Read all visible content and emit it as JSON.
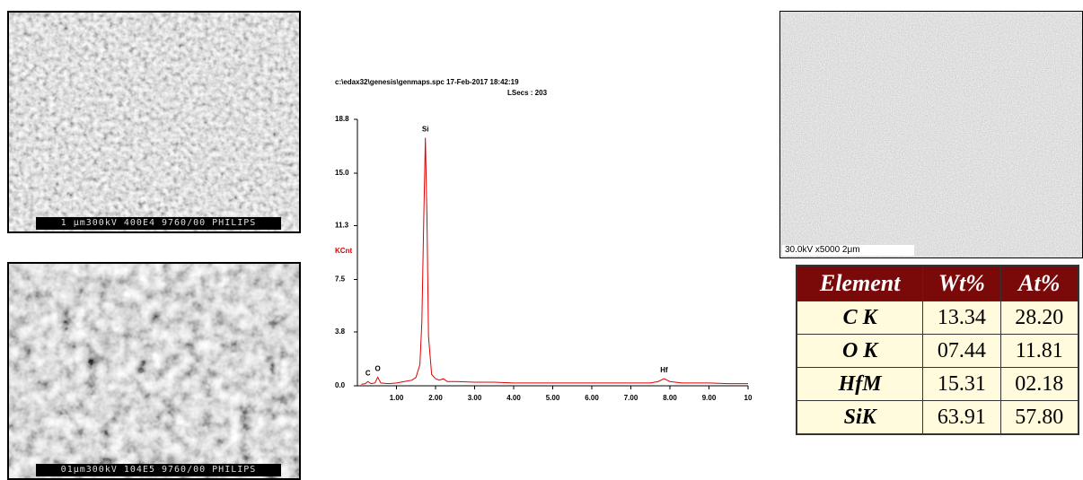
{
  "sem_images": [
    {
      "caption": "1 μm300kV 400E4 9760/00 PHILIPS"
    },
    {
      "caption": "01μm300kV 104E5 9760/00 PHILIPS"
    },
    {
      "caption": "30.0kV x5000 2μm"
    }
  ],
  "chart_data": {
    "type": "line",
    "header": "c:\\edax32\\genesis\\genmaps.spc  17-Feb-2017 18:42:19",
    "subheader": "LSecs : 203",
    "y_label": "KCnt",
    "color": "#e00000",
    "x": [
      0.1,
      0.2,
      0.27,
      0.35,
      0.45,
      0.52,
      0.6,
      0.8,
      1.0,
      1.2,
      1.4,
      1.5,
      1.6,
      1.65,
      1.7,
      1.74,
      1.78,
      1.82,
      1.9,
      2.0,
      2.1,
      2.2,
      2.3,
      2.5,
      3.0,
      3.5,
      4.0,
      4.5,
      5.0,
      5.5,
      6.0,
      6.5,
      7.0,
      7.5,
      7.7,
      7.85,
      8.0,
      8.3,
      9.0,
      9.5,
      10.0
    ],
    "values": [
      0.1,
      0.15,
      0.3,
      0.15,
      0.2,
      0.6,
      0.2,
      0.15,
      0.2,
      0.3,
      0.4,
      0.6,
      1.5,
      4.5,
      12.0,
      17.5,
      12.0,
      3.5,
      0.8,
      0.5,
      0.4,
      0.5,
      0.3,
      0.3,
      0.25,
      0.25,
      0.2,
      0.2,
      0.2,
      0.2,
      0.2,
      0.2,
      0.2,
      0.2,
      0.3,
      0.5,
      0.3,
      0.2,
      0.2,
      0.15,
      0.15
    ],
    "xlim": [
      0,
      10
    ],
    "ylim": [
      0,
      18.8
    ],
    "xticks": [
      {
        "value": 1,
        "label": "1.00"
      },
      {
        "value": 2,
        "label": "2.00"
      },
      {
        "value": 3,
        "label": "3.00"
      },
      {
        "value": 4,
        "label": "4.00"
      },
      {
        "value": 5,
        "label": "5.00"
      },
      {
        "value": 6,
        "label": "6.00"
      },
      {
        "value": 7,
        "label": "7.00"
      },
      {
        "value": 8,
        "label": "8.00"
      },
      {
        "value": 9,
        "label": "9.00"
      },
      10
    ],
    "yticks": [
      {
        "value": 0,
        "label": "0.0"
      },
      3.8,
      7.5,
      11.3,
      {
        "value": 15,
        "label": "15.0"
      },
      18.8
    ],
    "annotations": [
      {
        "text": "C",
        "x": 0.27,
        "y": 0.3
      },
      {
        "text": "O",
        "x": 0.52,
        "y": 0.6
      },
      {
        "text": "Si",
        "x": 1.74,
        "y": 17.5
      },
      {
        "text": "Hf",
        "x": 7.85,
        "y": 0.5
      }
    ]
  },
  "table": {
    "header": [
      "Element",
      "Wt%",
      "At%"
    ],
    "rows": [
      [
        "C K",
        "13.34",
        "28.20"
      ],
      [
        "O K",
        "07.44",
        "11.81"
      ],
      [
        "HfM",
        "15.31",
        "02.18"
      ],
      [
        "SiK",
        "63.91",
        "57.80"
      ]
    ]
  }
}
